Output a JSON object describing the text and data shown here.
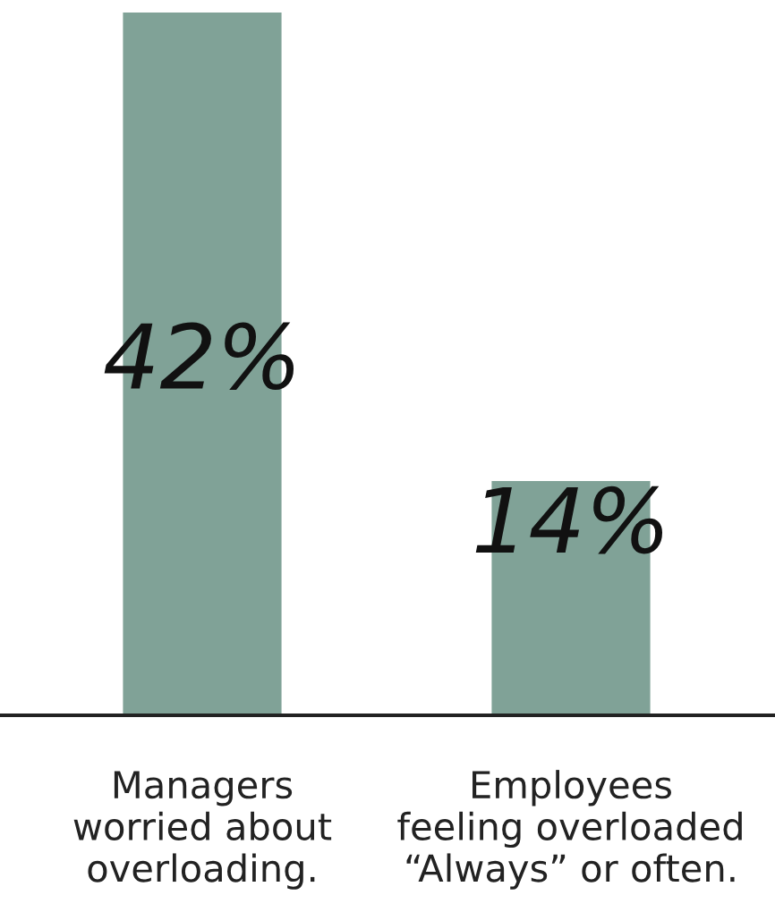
{
  "chart_data": {
    "type": "bar",
    "categories": [
      "Managers\nworried about\noverloading.",
      "Employees\nfeeling overloaded\n“Always” or often."
    ],
    "values": [
      42,
      14
    ],
    "color": "#80a297",
    "value_labels": [
      "42%",
      "14%"
    ],
    "grid": false,
    "legend": false
  }
}
